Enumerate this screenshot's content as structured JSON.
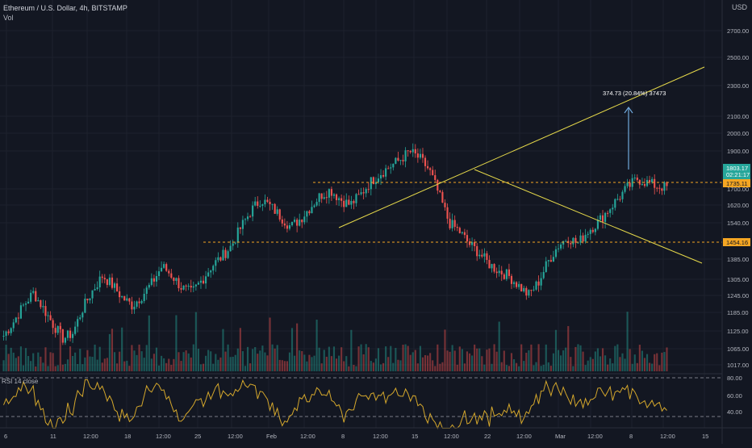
{
  "header": {
    "symbol_line": "Ethereum / U.S. Dollar, 4h, BITSTAMP",
    "indicator": "Vol",
    "currency": "USD"
  },
  "rsi": {
    "label": "RSI 14 close",
    "levels": [
      "80.00",
      "60.00",
      "40.00"
    ]
  },
  "price_axis": {
    "ticks": [
      "2700.00",
      "2500.00",
      "2300.00",
      "2100.00",
      "2000.00",
      "1900.00",
      "1700.00",
      "1620.00",
      "1540.00",
      "1385.00",
      "1305.00",
      "1245.00",
      "1185.00",
      "1125.00",
      "1065.00",
      "1017.00"
    ]
  },
  "price_tags": {
    "current_price": "1803.17",
    "countdown": "02:21:17",
    "level_a": "1735.11",
    "level_b": "1454.16"
  },
  "annotation": {
    "measure_text": "374.73 (20.84%) 37473"
  },
  "time_axis": {
    "labels": [
      "6",
      "11",
      "12:00",
      "18",
      "12:00",
      "25",
      "12:00",
      "Feb",
      "12:00",
      "8",
      "12:00",
      "15",
      "12:00",
      "22",
      "12:00",
      "Mar",
      "12:00",
      "8",
      "12:00",
      "15"
    ]
  },
  "colors": {
    "background": "#131722",
    "up": "#26a69a",
    "down": "#ef5350",
    "trendline": "#e6d94a",
    "level_line": "#f5a623",
    "rsi_line": "#d4a72c",
    "measure": "#6fa8dc",
    "price_tag": "#26a69a"
  },
  "chart_data": {
    "type": "candlestick",
    "title": "Ethereum / U.S. Dollar, 4h, BITSTAMP",
    "y_scale": "log",
    "ylim": [
      1000,
      2900
    ],
    "x_labels": [
      "6",
      "11",
      "12:00",
      "18",
      "12:00",
      "25",
      "12:00",
      "Feb",
      "12:00",
      "8",
      "12:00",
      "15",
      "12:00",
      "22",
      "12:00",
      "Mar",
      "12:00",
      "8",
      "12:00",
      "15"
    ],
    "price_path_close": [
      1150,
      1200,
      1260,
      1310,
      1250,
      1190,
      1140,
      1160,
      1250,
      1320,
      1380,
      1340,
      1290,
      1260,
      1300,
      1350,
      1420,
      1380,
      1330,
      1310,
      1360,
      1420,
      1460,
      1510,
      1600,
      1680,
      1740,
      1700,
      1650,
      1600,
      1640,
      1700,
      1760,
      1790,
      1740,
      1710,
      1760,
      1830,
      1880,
      1920,
      1960,
      2010,
      1970,
      1900,
      1760,
      1620,
      1580,
      1520,
      1480,
      1430,
      1400,
      1380,
      1340,
      1300,
      1350,
      1440,
      1510,
      1550,
      1520,
      1580,
      1620,
      1680,
      1740,
      1800,
      1850,
      1830,
      1810,
      1803
    ],
    "key_levels": [
      1735.11,
      1454.16
    ],
    "current_price": 1803.17,
    "measure": {
      "label": "374.73 (20.84%) 37473"
    },
    "rsi": {
      "name": "RSI 14",
      "levels": [
        80,
        60,
        40
      ]
    },
    "volume": true
  }
}
